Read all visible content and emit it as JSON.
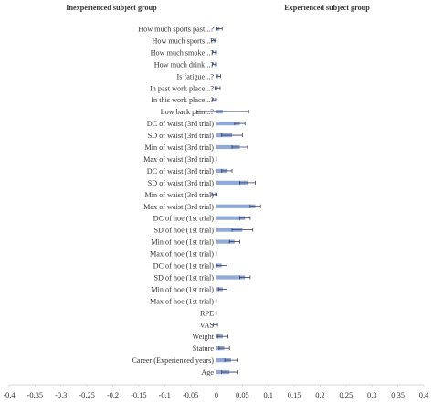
{
  "chart_data": {
    "type": "bar",
    "orientation": "horizontal",
    "left_header": "Inexperienced subject group",
    "right_header": "Experienced subject group",
    "categories": [
      "How much sports past...?",
      "How much sports...?",
      "How much smoke...?",
      "How much drink...?",
      "Is fatigue...?",
      "In past work place...?",
      "In this work place...?",
      "Low back pain...?",
      "DC of waist (3rd trial)",
      "SD of waist (3rd trial)",
      "Min of waist (3rd trial)",
      "Max of waist (3rd trial)",
      "DC of waist (3rd trial)",
      "SD of waist (3rd trial)",
      "Min of waist (3rd trial)",
      "Max of waist (3rd trial)",
      "DC of hoe (1st trial)",
      "SD of hoe (1st trial)",
      "Min of hoe (1st trial)",
      "Max of hoe (1st trial)",
      "DC of hoe (1st trial)",
      "SD of hoe (1st trial)",
      "Min of hoe (1st trial)",
      "Max of hoe (1st trial)",
      "RPE",
      "VAS",
      "Weight",
      "Stature",
      "Career (Experienced years)",
      "Age"
    ],
    "values": [
      0.006,
      -0.006,
      -0.004,
      -0.004,
      0.004,
      0.002,
      -0.004,
      0.012,
      0.045,
      0.03,
      0.045,
      0.0,
      0.02,
      0.06,
      -0.004,
      0.075,
      0.055,
      0.05,
      0.035,
      0.0,
      0.01,
      0.055,
      0.012,
      0.0,
      0.0,
      -0.002,
      0.012,
      0.015,
      0.028,
      0.025
    ],
    "errors": [
      0.005,
      0.004,
      0.004,
      0.004,
      0.004,
      0.005,
      0.004,
      0.05,
      0.01,
      0.02,
      0.015,
      0.0,
      0.01,
      0.015,
      0.005,
      0.01,
      0.01,
      0.02,
      0.01,
      0.0,
      0.01,
      0.01,
      0.008,
      0.0,
      0.0,
      0.004,
      0.01,
      0.01,
      0.012,
      0.015
    ],
    "x_ticks": [
      "-0.4",
      "-0.35",
      "-0.3",
      "-0.25",
      "-0.2",
      "-0.15",
      "-0.1",
      "-0.05",
      "0",
      "0.05",
      "0.1",
      "0.15",
      "0.2",
      "0.25",
      "0.3",
      "0.35",
      "0.4"
    ],
    "xlim": [
      -0.4,
      0.4
    ],
    "grid": false,
    "bar_color": "#8eaadb",
    "error_color": "#3a3a5a"
  }
}
